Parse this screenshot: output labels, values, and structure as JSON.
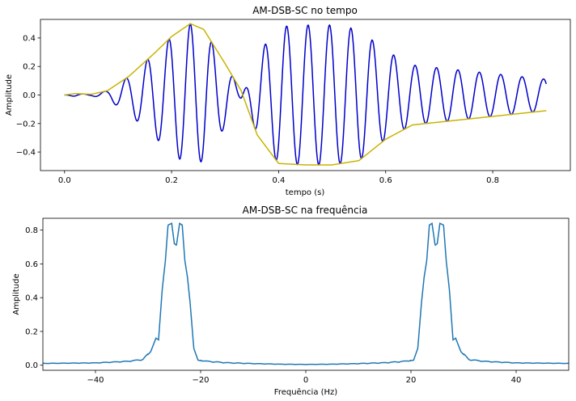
{
  "chart_data": [
    {
      "type": "line",
      "title": "AM-DSB-SC no tempo",
      "xlabel": "tempo (s)",
      "ylabel": "Amplitude",
      "xlim": [
        -0.045,
        0.945
      ],
      "ylim": [
        -0.53,
        0.53
      ],
      "xticks": [
        0.0,
        0.2,
        0.4,
        0.6,
        0.8
      ],
      "yticks": [
        -0.4,
        -0.2,
        0.0,
        0.2,
        0.4
      ],
      "xtick_labels": [
        "0.0",
        "0.2",
        "0.4",
        "0.6",
        "0.8"
      ],
      "ytick_labels": [
        "−0.4",
        "−0.2",
        "0.0",
        "0.2",
        "0.4"
      ],
      "grid": false,
      "carrier_frequency_hz": 25,
      "series": [
        {
          "name": "",
          "color": "#0000cc",
          "description_kind": "modulated",
          "x": [
            0.0,
            0.02,
            0.05,
            0.08,
            0.12,
            0.17,
            0.2,
            0.235,
            0.26,
            0.3,
            0.33,
            0.36,
            0.4,
            0.45,
            0.5,
            0.55,
            0.6,
            0.65,
            0.7,
            0.75,
            0.8,
            0.85,
            0.9
          ],
          "y": [
            0.0,
            0.01,
            0.005,
            0.03,
            0.13,
            0.3,
            0.41,
            0.5,
            0.46,
            0.22,
            0.03,
            -0.28,
            -0.48,
            -0.49,
            -0.49,
            -0.46,
            -0.31,
            -0.21,
            -0.19,
            -0.17,
            -0.15,
            -0.13,
            -0.11
          ]
        },
        {
          "name": "",
          "color": "#c8b400",
          "description_kind": "envelope",
          "x": [
            0.0,
            0.02,
            0.05,
            0.08,
            0.12,
            0.17,
            0.2,
            0.235,
            0.26,
            0.3,
            0.33,
            0.36,
            0.4,
            0.45,
            0.5,
            0.55,
            0.6,
            0.65,
            0.7,
            0.75,
            0.8,
            0.85,
            0.9
          ],
          "y": [
            0.0,
            0.01,
            0.005,
            0.03,
            0.13,
            0.3,
            0.41,
            0.5,
            0.46,
            0.22,
            0.03,
            -0.28,
            -0.48,
            -0.49,
            -0.49,
            -0.46,
            -0.31,
            -0.21,
            -0.19,
            -0.17,
            -0.15,
            -0.13,
            -0.11
          ]
        }
      ]
    },
    {
      "type": "line",
      "title": "AM-DSB-SC na frequência",
      "xlabel": "Frequência (Hz)",
      "ylabel": "Amplitude",
      "xlim": [
        -50,
        50
      ],
      "ylim": [
        -0.03,
        0.87
      ],
      "xticks": [
        -40,
        -20,
        0,
        20,
        40
      ],
      "yticks": [
        0.0,
        0.2,
        0.4,
        0.6,
        0.8
      ],
      "xtick_labels": [
        "−40",
        "−20",
        "0",
        "20",
        "40"
      ],
      "ytick_labels": [
        "0.0",
        "0.2",
        "0.4",
        "0.6",
        "0.8"
      ],
      "grid": false,
      "series": [
        {
          "name": "",
          "color": "#1f77b4",
          "x": [
            -50,
            -40,
            -34,
            -31,
            -29.5,
            -28.5,
            -28,
            -27.3,
            -26.7,
            -26.2,
            -25.5,
            -25,
            -24.6,
            -24,
            -23.5,
            -23,
            -22.5,
            -22,
            -21.3,
            -20.5,
            -19,
            -15,
            -10,
            -5,
            0,
            5,
            10,
            15,
            19,
            20.5,
            21.3,
            22,
            22.5,
            23,
            23.5,
            24,
            24.6,
            25,
            25.5,
            26.2,
            26.7,
            27.3,
            28,
            28.5,
            29.5,
            31,
            34,
            40,
            50
          ],
          "y": [
            0.01,
            0.012,
            0.02,
            0.03,
            0.08,
            0.16,
            0.15,
            0.45,
            0.62,
            0.83,
            0.84,
            0.72,
            0.71,
            0.84,
            0.83,
            0.62,
            0.52,
            0.37,
            0.1,
            0.03,
            0.02,
            0.012,
            0.008,
            0.005,
            0.004,
            0.005,
            0.008,
            0.012,
            0.02,
            0.03,
            0.1,
            0.37,
            0.52,
            0.62,
            0.83,
            0.84,
            0.71,
            0.72,
            0.84,
            0.83,
            0.62,
            0.45,
            0.15,
            0.16,
            0.08,
            0.03,
            0.02,
            0.012,
            0.01
          ]
        }
      ]
    }
  ]
}
